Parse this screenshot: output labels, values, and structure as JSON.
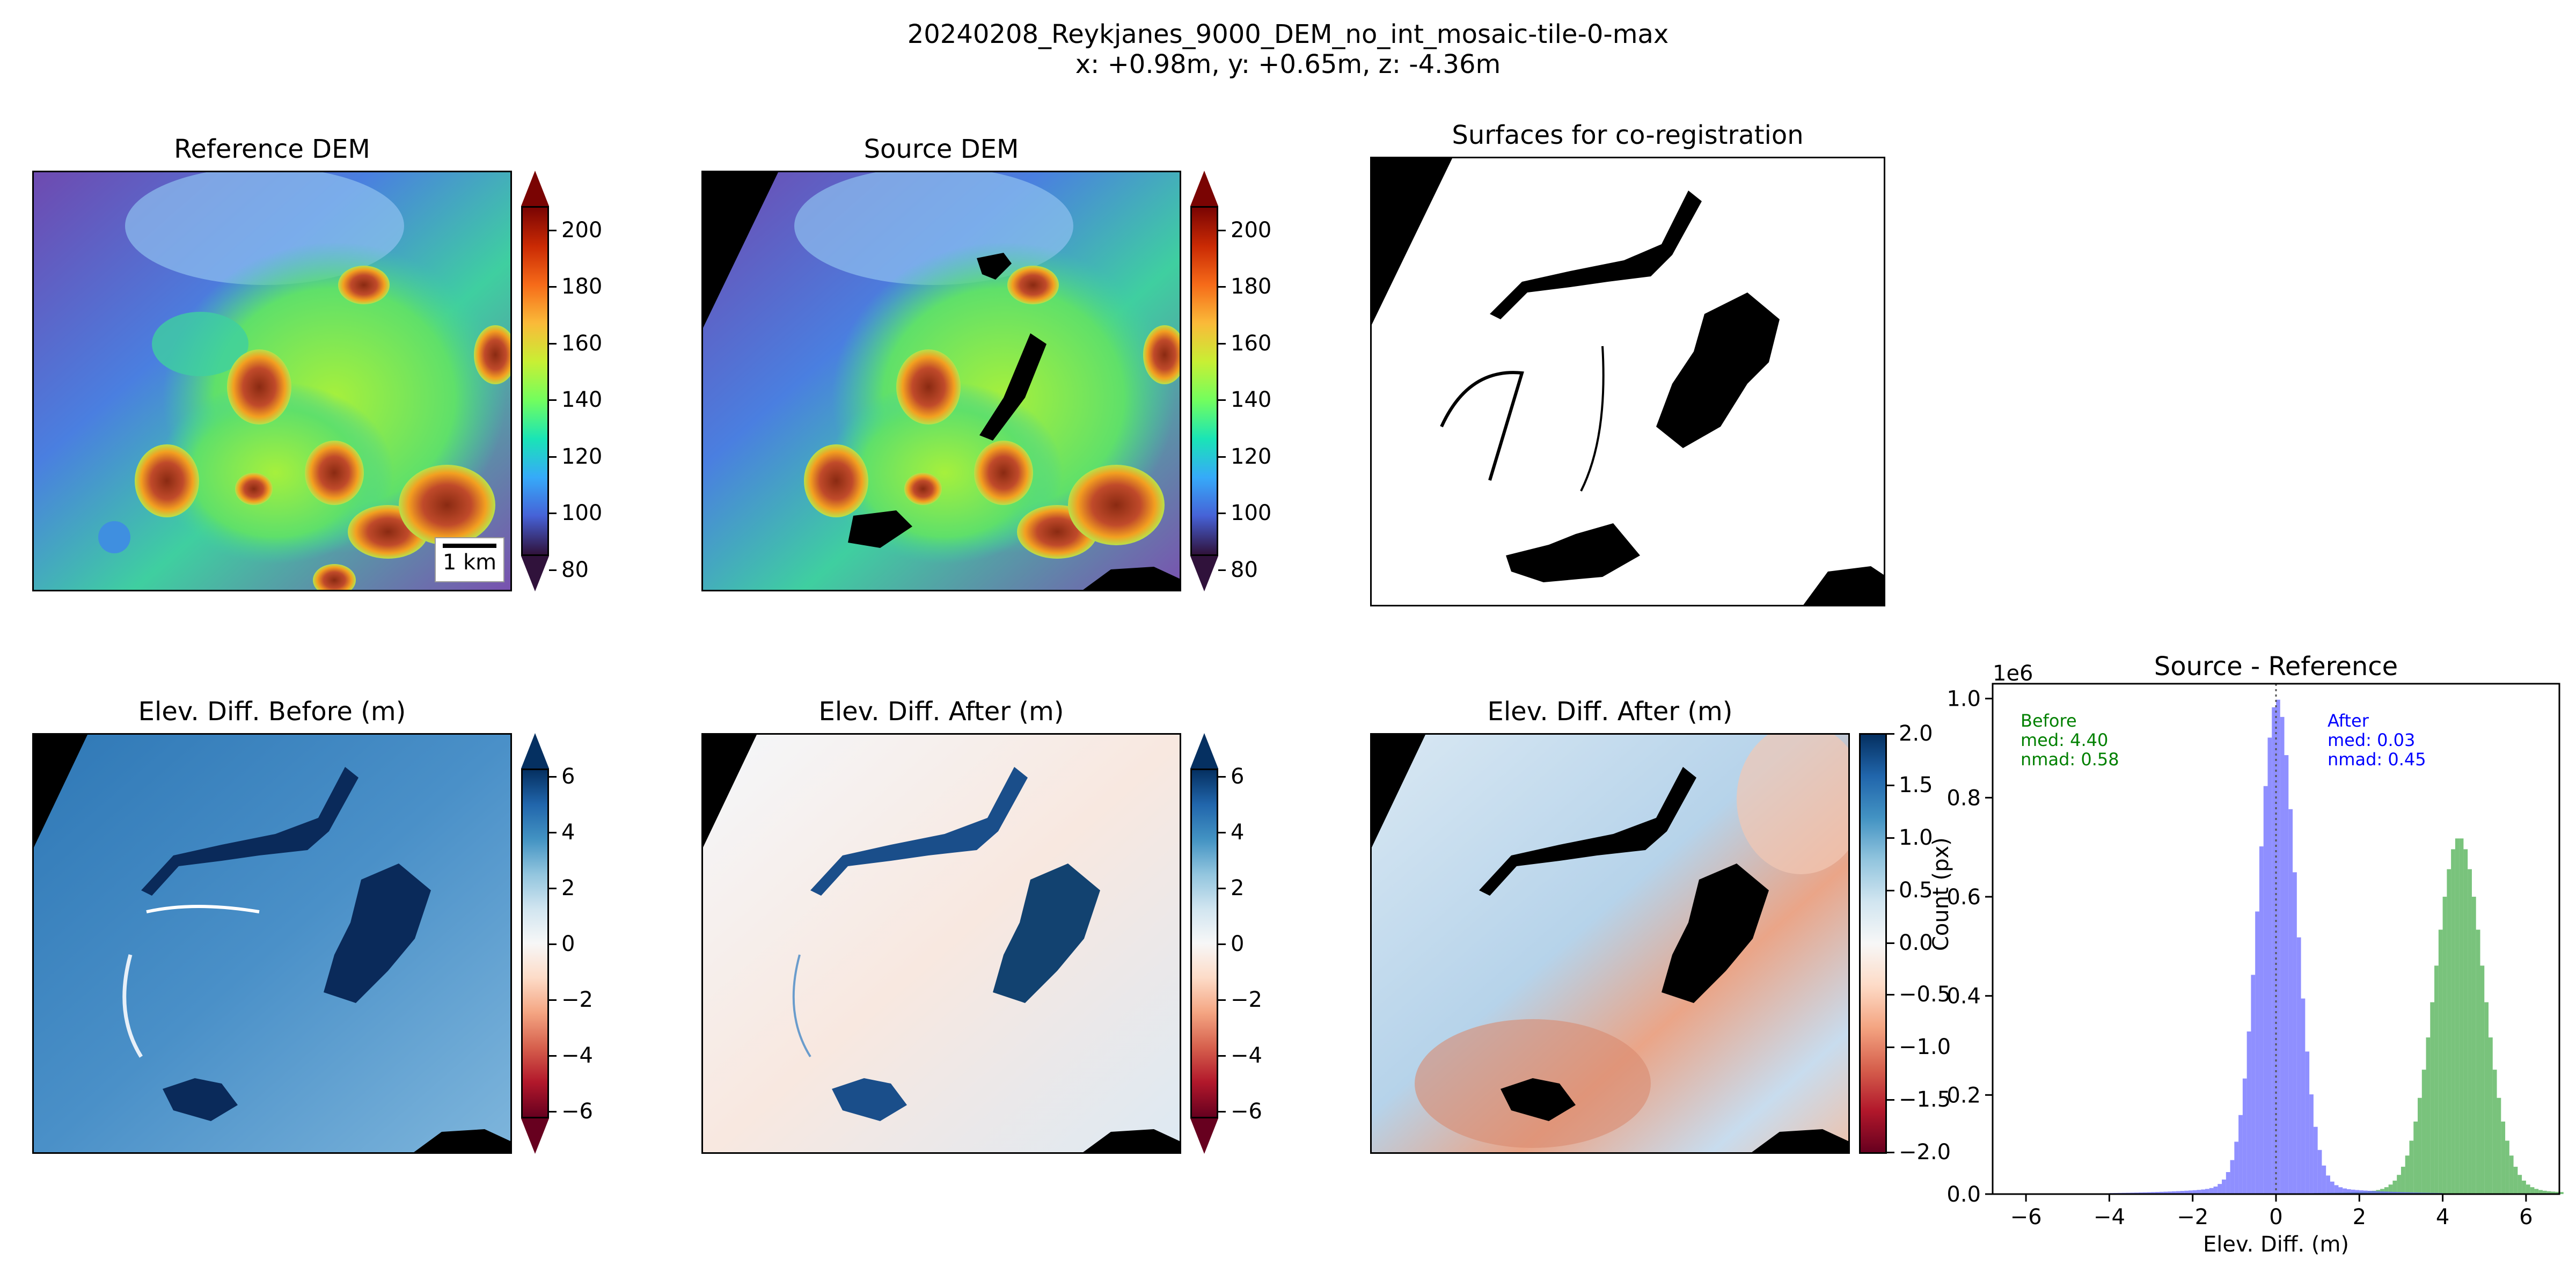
{
  "figure": {
    "title_line1": "20240208_Reykjanes_9000_DEM_no_int_mosaic-tile-0-max",
    "title_line2": "x: +0.98m, y: +0.65m, z: -4.36m"
  },
  "panels": {
    "reference_dem": {
      "title": "Reference DEM",
      "scalebar_label": "1 km"
    },
    "source_dem": {
      "title": "Source DEM"
    },
    "surfaces": {
      "title": "Surfaces for co-registration"
    },
    "diff_before": {
      "title": "Elev. Diff. Before (m)"
    },
    "diff_after": {
      "title": "Elev. Diff. After (m)"
    },
    "diff_after_zoom": {
      "title": "Elev. Diff. After (m)"
    }
  },
  "colorbars": {
    "elevation": {
      "ticks": [
        "80",
        "100",
        "120",
        "140",
        "160",
        "180",
        "200"
      ],
      "colormap": "turbo"
    },
    "diff_wide": {
      "ticks": [
        "−6",
        "−4",
        "−2",
        "0",
        "2",
        "4",
        "6"
      ],
      "colormap": "RdBu"
    },
    "diff_narrow": {
      "ticks": [
        "−2.0",
        "−1.5",
        "−1.0",
        "−0.5",
        "0.0",
        "0.5",
        "1.0",
        "1.5",
        "2.0"
      ],
      "colormap": "RdBu"
    }
  },
  "chart_data": {
    "type": "bar",
    "title": "Source - Reference",
    "xlabel": "Elev. Diff. (m)",
    "ylabel": "Count (px)",
    "y_multiplier": "1e6",
    "xlim": [
      -6.8,
      6.8
    ],
    "ylim": [
      0,
      1.03
    ],
    "xticks": [
      "−6",
      "−4",
      "−2",
      "0",
      "2",
      "4",
      "6"
    ],
    "yticks": [
      "0.0",
      "0.2",
      "0.4",
      "0.6",
      "0.8",
      "1.0"
    ],
    "annotations": {
      "before": {
        "lines": [
          "Before",
          "med: 4.40",
          "nmad: 0.58"
        ],
        "color": "#008000"
      },
      "after": {
        "lines": [
          "After",
          "med: 0.03",
          "nmad: 0.45"
        ],
        "color": "#0000ff"
      }
    },
    "series": [
      {
        "name": "Before",
        "color": "#4caf50",
        "median": 4.4,
        "nmad": 0.58,
        "peak": 0.7,
        "bin_width": 0.1
      },
      {
        "name": "After",
        "color": "#6a6aff",
        "median": 0.03,
        "nmad": 0.45,
        "peak": 0.97,
        "bin_width": 0.1
      }
    ]
  }
}
